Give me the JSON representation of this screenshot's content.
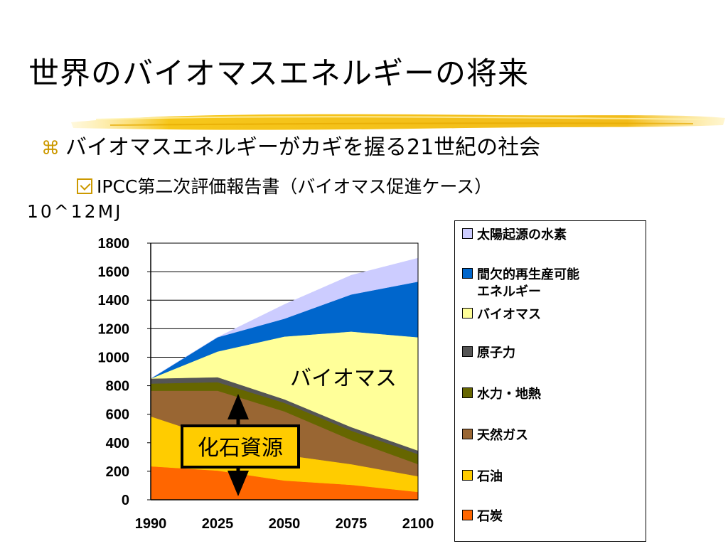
{
  "slide": {
    "title": "世界のバイオマスエネルギーの将来",
    "bullet1": "バイオマスエネルギーがカギを握る21世紀の社会",
    "bullet2": "IPCC第二次評価報告書（バイオマス促進ケース）",
    "unit_label": "10^12MJ"
  },
  "chart_data": {
    "type": "area",
    "stacked": true,
    "categories": [
      "1990",
      "2025",
      "2050",
      "2075",
      "2100"
    ],
    "ylim": [
      0,
      1800
    ],
    "yticks": [
      0,
      200,
      400,
      600,
      800,
      1000,
      1200,
      1400,
      1600,
      1800
    ],
    "grid": true,
    "legend_position": "right",
    "series": [
      {
        "name": "石炭",
        "color": "#FF6600",
        "values": [
          235,
          205,
          135,
          105,
          55
        ]
      },
      {
        "name": "石油",
        "color": "#FFCC00",
        "values": [
          350,
          225,
          180,
          145,
          110
        ]
      },
      {
        "name": "天然ガス",
        "color": "#996633",
        "values": [
          180,
          335,
          305,
          170,
          85
        ]
      },
      {
        "name": "水力・地熱",
        "color": "#666600",
        "values": [
          50,
          60,
          60,
          65,
          70
        ]
      },
      {
        "name": "原子力",
        "color": "#555555",
        "values": [
          35,
          35,
          25,
          25,
          25
        ]
      },
      {
        "name": "バイオマス",
        "color": "#FFFF99",
        "values": [
          0,
          180,
          440,
          670,
          795
        ]
      },
      {
        "name": "間欠的再生産可能\nエネルギー",
        "color": "#0066CC",
        "values": [
          0,
          100,
          125,
          260,
          390
        ]
      },
      {
        "name": "太陽起源の水素",
        "color": "#CCCCFF",
        "values": [
          0,
          0,
          100,
          135,
          165
        ]
      }
    ],
    "annotations": {
      "biomass_label": "バイオマス",
      "fossil_label": "化石資源"
    }
  }
}
